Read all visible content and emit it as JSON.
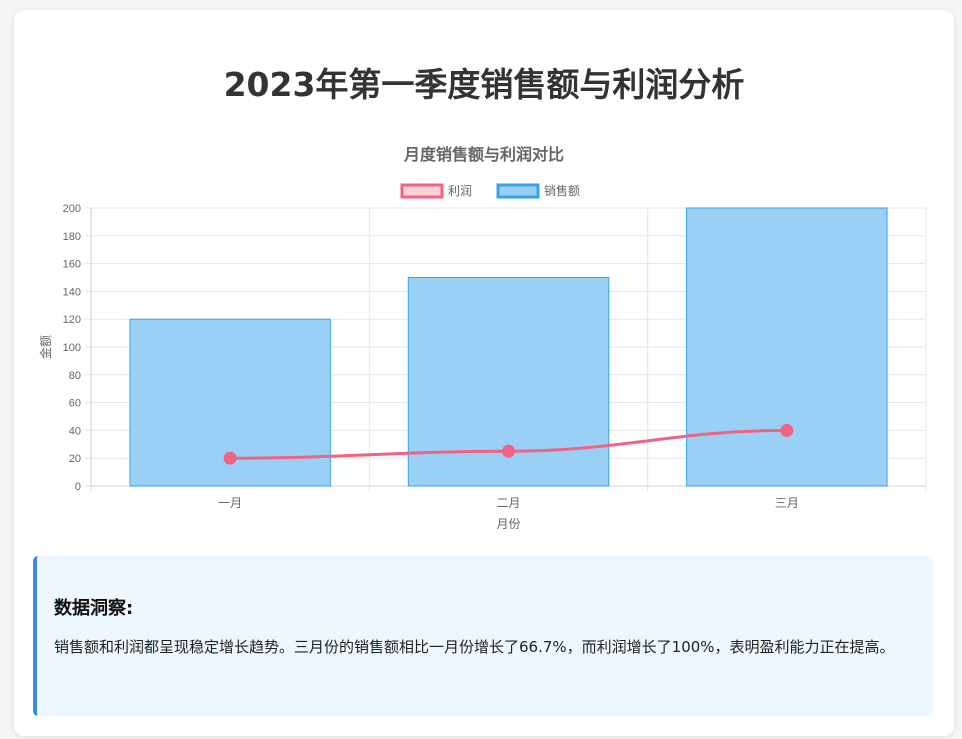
{
  "page": {
    "title": "2023年第一季度销售额与利润分析"
  },
  "chart_data": {
    "type": "bar",
    "title": "月度销售额与利润对比",
    "xlabel": "月份",
    "ylabel": "金额",
    "categories": [
      "一月",
      "二月",
      "三月"
    ],
    "ylim": [
      0,
      200
    ],
    "yticks": [
      0,
      20,
      40,
      60,
      80,
      100,
      120,
      140,
      160,
      180,
      200
    ],
    "grid": true,
    "legend_position": "top",
    "series": [
      {
        "name": "利润",
        "type": "line",
        "values": [
          20,
          25,
          40
        ],
        "color": "#f06384",
        "fill": "#fbd0da"
      },
      {
        "name": "销售额",
        "type": "bar",
        "values": [
          120,
          150,
          200
        ],
        "color": "#36a2eb",
        "fill": "#9ad0f5"
      }
    ]
  },
  "insight": {
    "title": "数据洞察:",
    "body": "销售额和利润都呈现稳定增长趋势。三月份的销售额相比一月份增长了66.7%，而利润增长了100%，表明盈利能力正在提高。"
  }
}
